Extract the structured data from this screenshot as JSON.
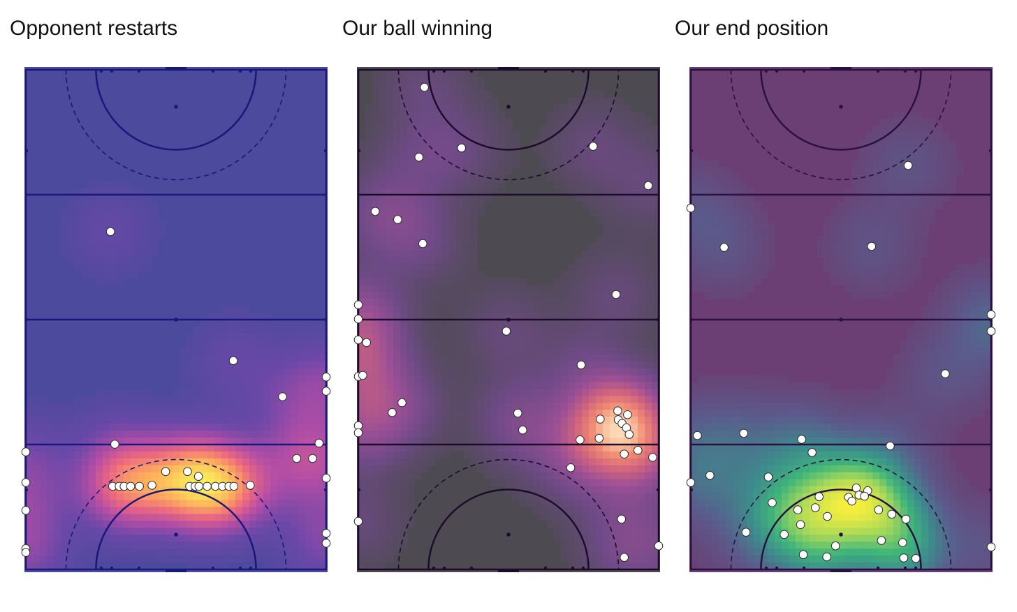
{
  "panels": [
    {
      "title": "Opponent restarts"
    },
    {
      "title": "Our ball winning"
    },
    {
      "title": "Our end position"
    }
  ],
  "chart_data": [
    {
      "type": "scatter",
      "title": "Opponent restarts",
      "xlim": [
        0,
        55
      ],
      "ylim": [
        0,
        91.4
      ],
      "background": "#4c4a9c",
      "line_color": "#16187a",
      "heat_stops": [
        "#4c4a9c",
        "#6b48a8",
        "#b34da6",
        "#ee6a7e",
        "#ffb25a",
        "#f6f05a"
      ],
      "points": [
        [
          15.5,
          61.8
        ],
        [
          38,
          38.2
        ],
        [
          47,
          31.6
        ],
        [
          55,
          35.2
        ],
        [
          55,
          32.6
        ],
        [
          16.3,
          22.9
        ],
        [
          53.7,
          23.1
        ],
        [
          49.6,
          20.3
        ],
        [
          52.5,
          20.3
        ],
        [
          0,
          21.5
        ],
        [
          0,
          15.9
        ],
        [
          0,
          10.8
        ],
        [
          0,
          3.8
        ],
        [
          0,
          3.1
        ],
        [
          55,
          16.7
        ],
        [
          55,
          6.6
        ],
        [
          55,
          4.8
        ],
        [
          25.6,
          17.9
        ],
        [
          29.6,
          17.9
        ],
        [
          31.6,
          17
        ],
        [
          15.9,
          15.2
        ],
        [
          17.1,
          15.2
        ],
        [
          18,
          15.2
        ],
        [
          19.2,
          15.2
        ],
        [
          20.8,
          15.2
        ],
        [
          23.1,
          15.4
        ],
        [
          30,
          15.2
        ],
        [
          31,
          15.2
        ],
        [
          31.7,
          15.2
        ],
        [
          33.2,
          15.2
        ],
        [
          34.7,
          15.2
        ],
        [
          36,
          15.2
        ],
        [
          37.2,
          15.2
        ],
        [
          38.1,
          15.2
        ],
        [
          41.1,
          15.4
        ]
      ]
    },
    {
      "type": "scatter",
      "title": "Our ball winning",
      "xlim": [
        0,
        55
      ],
      "ylim": [
        0,
        91.4
      ],
      "background": "#4d4a52",
      "line_color": "#1c0b2b",
      "heat_stops": [
        "#4d4a52",
        "#6e4a86",
        "#9a4f95",
        "#d0637f",
        "#f08a72",
        "#fddab4"
      ],
      "points": [
        [
          12.1,
          88.2
        ],
        [
          18.9,
          77.1
        ],
        [
          11.1,
          75.4
        ],
        [
          43,
          77.4
        ],
        [
          53.1,
          70.2
        ],
        [
          3.1,
          65.5
        ],
        [
          7.2,
          64
        ],
        [
          11.8,
          59.6
        ],
        [
          47.2,
          50.3
        ],
        [
          0,
          48.4
        ],
        [
          0,
          45.8
        ],
        [
          0,
          42
        ],
        [
          1.5,
          41.5
        ],
        [
          0,
          35.3
        ],
        [
          0.8,
          35.5
        ],
        [
          27.1,
          43.6
        ],
        [
          40.8,
          37.4
        ],
        [
          29.2,
          28.6
        ],
        [
          8,
          30.5
        ],
        [
          6.2,
          28.7
        ],
        [
          30.1,
          25.5
        ],
        [
          0,
          26.3
        ],
        [
          0,
          25
        ],
        [
          40.6,
          23.7
        ],
        [
          44.3,
          27.5
        ],
        [
          44.1,
          24
        ],
        [
          47.5,
          29
        ],
        [
          47.6,
          27.4
        ],
        [
          48.3,
          26.7
        ],
        [
          49.1,
          25.9
        ],
        [
          49.3,
          28.3
        ],
        [
          49.6,
          24.7
        ],
        [
          51.2,
          21.8
        ],
        [
          48.7,
          21.1
        ],
        [
          53.9,
          20.5
        ],
        [
          38.9,
          18.6
        ],
        [
          48.2,
          9.2
        ],
        [
          0,
          8.8
        ],
        [
          55,
          4.3
        ],
        [
          48.7,
          2.2
        ]
      ]
    },
    {
      "type": "scatter",
      "title": "Our end position",
      "xlim": [
        0,
        55
      ],
      "ylim": [
        0,
        91.4
      ],
      "background": "#6b3f73",
      "line_color": "#2a1042",
      "heat_stops": [
        "#6b3f73",
        "#5a5c8c",
        "#3d8b8c",
        "#3fb57a",
        "#a6d85a",
        "#f6ef3c"
      ],
      "points": [
        [
          39.8,
          73.9
        ],
        [
          0,
          66.1
        ],
        [
          6.1,
          58.9
        ],
        [
          33.1,
          59.1
        ],
        [
          55,
          46.6
        ],
        [
          55,
          43.6
        ],
        [
          46.6,
          35.8
        ],
        [
          1.2,
          24.5
        ],
        [
          9.7,
          24.9
        ],
        [
          20.3,
          23.8
        ],
        [
          36.5,
          22.6
        ],
        [
          22.2,
          21.4
        ],
        [
          3.5,
          17.2
        ],
        [
          14.2,
          16.9
        ],
        [
          30.3,
          14.9
        ],
        [
          32.4,
          14.4
        ],
        [
          28.9,
          13.2
        ],
        [
          30.8,
          13.6
        ],
        [
          31.8,
          13.4
        ],
        [
          29.5,
          12.5
        ],
        [
          14.9,
          12.2
        ],
        [
          22.8,
          11.3
        ],
        [
          23.5,
          13.3
        ],
        [
          19.6,
          10.9
        ],
        [
          25,
          9.7
        ],
        [
          34.4,
          10.9
        ],
        [
          36.8,
          10.1
        ],
        [
          39.4,
          9.2
        ],
        [
          20.1,
          8.2
        ],
        [
          10.1,
          6.8
        ],
        [
          17.1,
          6.4
        ],
        [
          34.9,
          5.3
        ],
        [
          38.8,
          4.9
        ],
        [
          26.5,
          4.3
        ],
        [
          20.6,
          2.7
        ],
        [
          39,
          2.1
        ],
        [
          41.2,
          2
        ],
        [
          24.9,
          2.3
        ],
        [
          0,
          15.9
        ],
        [
          55,
          4.1
        ]
      ]
    }
  ]
}
